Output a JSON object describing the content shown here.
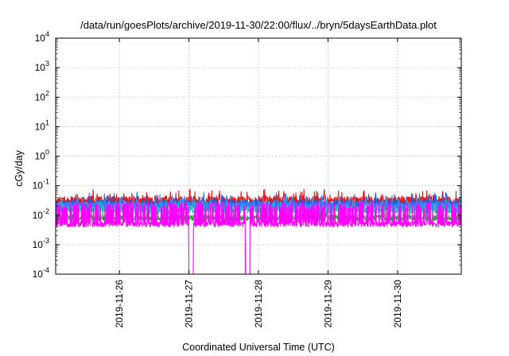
{
  "chart_data": {
    "type": "line",
    "title": "/data/run/goesPlots/archive/2019-11-30/22:00/flux/../bryn/5daysEarthData.plot",
    "xlabel": "Coordinated Universal Time (UTC)",
    "ylabel": "cGy/day",
    "y_scale": "log",
    "ylim": [
      0.0001,
      10000
    ],
    "xlim": [
      "2019-11-25T02:00",
      "2019-11-30T22:00"
    ],
    "y_ticks": [
      {
        "base": "10",
        "exp": "-4"
      },
      {
        "base": "10",
        "exp": "-3"
      },
      {
        "base": "10",
        "exp": "-2"
      },
      {
        "base": "10",
        "exp": "-1"
      },
      {
        "base": "10",
        "exp": "0"
      },
      {
        "base": "10",
        "exp": "1"
      },
      {
        "base": "10",
        "exp": "2"
      },
      {
        "base": "10",
        "exp": "3"
      },
      {
        "base": "10",
        "exp": "4"
      }
    ],
    "x_ticks": [
      "2019-11-26",
      "2019-11-27",
      "2019-11-28",
      "2019-11-29",
      "2019-11-30"
    ],
    "grid": true,
    "legend": "none",
    "series": [
      {
        "color": "#e31a1c",
        "typical": 0.03,
        "spread_decades": 0.16,
        "spike_prob": 0.05
      },
      {
        "color": "#1f5fd6",
        "typical": 0.024,
        "spread_decades": 0.14,
        "spike_prob": 0.04
      },
      {
        "color": "#2b8cff",
        "typical": 0.02,
        "spread_decades": 0.14,
        "spike_prob": 0.04
      },
      {
        "color": "#20c0c0",
        "typical": 0.015,
        "spread_decades": 0.12,
        "spike_prob": 0.04
      },
      {
        "color": "#2f9e44",
        "typical": 0.008,
        "spread_decades": 0.1,
        "spike_prob": 0.05
      },
      {
        "color": "#ff00ff",
        "typical": 0.005,
        "spread_decades": 0.1,
        "spike_prob": 0.3,
        "spike_to": 0.02,
        "dropouts": [
          [
            "2019-11-27T00:00",
            "2019-11-27T01:30"
          ],
          [
            "2019-11-27T19:30",
            "2019-11-27T21:00"
          ]
        ]
      }
    ]
  }
}
